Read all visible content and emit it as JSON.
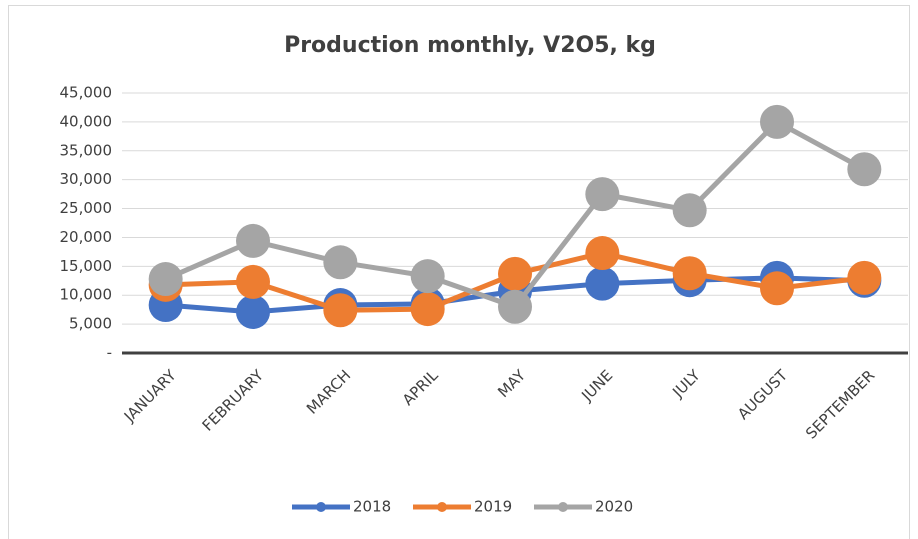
{
  "chart_data": {
    "type": "line",
    "title": "Production monthly, V2O5, kg",
    "categories": [
      "JANUARY",
      "FEBRUARY",
      "MARCH",
      "APRIL",
      "MAY",
      "JUNE",
      "JULY",
      "AUGUST",
      "SEPTEMBER"
    ],
    "series": [
      {
        "name": "2018",
        "color": "#4472c4",
        "values": [
          8300,
          7100,
          8300,
          8500,
          10700,
          12000,
          12600,
          13000,
          12500
        ]
      },
      {
        "name": "2019",
        "color": "#ed7d31",
        "values": [
          11800,
          12300,
          7400,
          7600,
          13700,
          17300,
          13800,
          11200,
          13000
        ]
      },
      {
        "name": "2020",
        "color": "#a5a5a5",
        "values": [
          12800,
          19400,
          15700,
          13300,
          8000,
          27500,
          24700,
          40000,
          31800
        ]
      }
    ],
    "ylim": [
      0,
      45000
    ],
    "yticks": [
      {
        "value": 0,
        "label": "-"
      },
      {
        "value": 5000,
        "label": "5,000"
      },
      {
        "value": 10000,
        "label": "10,000"
      },
      {
        "value": 15000,
        "label": "15,000"
      },
      {
        "value": 20000,
        "label": "20,000"
      },
      {
        "value": 25000,
        "label": "25,000"
      },
      {
        "value": 30000,
        "label": "30,000"
      },
      {
        "value": 35000,
        "label": "35,000"
      },
      {
        "value": 40000,
        "label": "40,000"
      },
      {
        "value": 45000,
        "label": "45,000"
      }
    ],
    "grid": true,
    "legend": "bottom"
  }
}
